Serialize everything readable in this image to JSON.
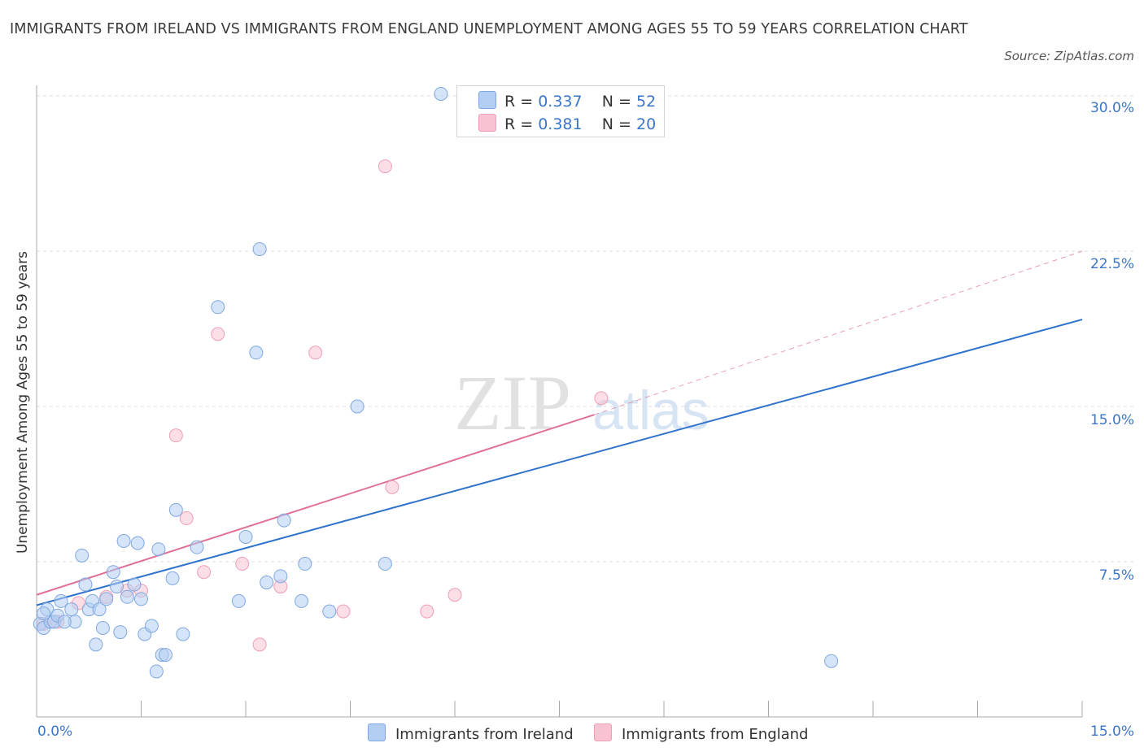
{
  "header": {
    "title": "IMMIGRANTS FROM IRELAND VS IMMIGRANTS FROM ENGLAND UNEMPLOYMENT AMONG AGES 55 TO 59 YEARS CORRELATION CHART",
    "source": "Source: ZipAtlas.com",
    "watermark_zip": "ZIP",
    "watermark_atlas": "atlas"
  },
  "colors": {
    "ireland_fill": "#b3cef3",
    "ireland_stroke": "#7fa8e0",
    "ireland_line": "#2f72cc",
    "england_fill": "#f8c2d2",
    "england_stroke": "#ee9fb8",
    "england_line": "#e07098",
    "tick_text": "#3a76c9",
    "grid": "#dddddd"
  },
  "legend": {
    "ireland": {
      "r_label": "R = ",
      "r_value": "0.337",
      "n_label": "N = ",
      "n_value": "52"
    },
    "england": {
      "r_label": "R = ",
      "r_value": "0.381",
      "n_label": "N = ",
      "n_value": "20"
    },
    "bottom_ireland": "Immigrants from Ireland",
    "bottom_england": "Immigrants from England"
  },
  "chart_data": {
    "type": "scatter",
    "title": "IMMIGRANTS FROM IRELAND VS IMMIGRANTS FROM ENGLAND UNEMPLOYMENT AMONG AGES 55 TO 59 YEARS CORRELATION CHART",
    "xlabel": "",
    "ylabel": "Unemployment Among Ages 55 to 59 years",
    "xlim": [
      0,
      15
    ],
    "ylim": [
      0,
      30
    ],
    "x_tick_labels": [
      "0.0%",
      "15.0%"
    ],
    "y_ticks": [
      7.5,
      15.0,
      22.5,
      30.0
    ],
    "y_tick_labels": [
      "7.5%",
      "15.0%",
      "22.5%",
      "30.0%"
    ],
    "grid": true,
    "legend_position": "top-center",
    "series": [
      {
        "name": "Immigrants from Ireland",
        "R": 0.337,
        "N": 52,
        "trend": {
          "x": [
            0,
            15
          ],
          "y": [
            5.4,
            19.2
          ],
          "extrapolated_from": 15
        },
        "points": [
          [
            0.05,
            4.5
          ],
          [
            0.1,
            4.3
          ],
          [
            0.15,
            5.2
          ],
          [
            0.2,
            4.6
          ],
          [
            0.25,
            4.6
          ],
          [
            0.3,
            4.9
          ],
          [
            0.35,
            5.6
          ],
          [
            0.5,
            5.2
          ],
          [
            0.55,
            4.6
          ],
          [
            0.65,
            7.8
          ],
          [
            0.7,
            6.4
          ],
          [
            0.75,
            5.2
          ],
          [
            0.8,
            5.6
          ],
          [
            0.85,
            3.5
          ],
          [
            0.9,
            5.2
          ],
          [
            0.95,
            4.3
          ],
          [
            1.0,
            5.7
          ],
          [
            1.1,
            7.0
          ],
          [
            1.15,
            6.3
          ],
          [
            1.2,
            4.1
          ],
          [
            1.25,
            8.5
          ],
          [
            1.3,
            5.8
          ],
          [
            1.4,
            6.4
          ],
          [
            1.45,
            8.4
          ],
          [
            1.5,
            5.7
          ],
          [
            1.55,
            4.0
          ],
          [
            1.65,
            4.4
          ],
          [
            1.72,
            2.2
          ],
          [
            1.75,
            8.1
          ],
          [
            1.8,
            3.0
          ],
          [
            1.85,
            3.0
          ],
          [
            1.95,
            6.7
          ],
          [
            2.0,
            10.0
          ],
          [
            2.1,
            4.0
          ],
          [
            2.3,
            8.2
          ],
          [
            2.6,
            19.8
          ],
          [
            2.9,
            5.6
          ],
          [
            3.0,
            8.7
          ],
          [
            3.15,
            17.6
          ],
          [
            3.2,
            22.6
          ],
          [
            3.3,
            6.5
          ],
          [
            3.5,
            6.8
          ],
          [
            3.55,
            9.5
          ],
          [
            3.8,
            5.6
          ],
          [
            3.85,
            7.4
          ],
          [
            4.2,
            5.1
          ],
          [
            4.6,
            15.0
          ],
          [
            5.0,
            7.4
          ],
          [
            5.8,
            30.1
          ],
          [
            11.4,
            2.7
          ],
          [
            0.1,
            5.0
          ],
          [
            0.4,
            4.6
          ]
        ]
      },
      {
        "name": "Immigrants from England",
        "R": 0.381,
        "N": 20,
        "trend": {
          "x": [
            0,
            8.0
          ],
          "y": [
            5.9,
            14.6
          ],
          "extrapolated_to": [
            15,
            22.5
          ]
        },
        "points": [
          [
            0.1,
            4.5
          ],
          [
            0.3,
            4.6
          ],
          [
            0.6,
            5.5
          ],
          [
            1.0,
            5.8
          ],
          [
            1.3,
            6.1
          ],
          [
            1.5,
            6.1
          ],
          [
            2.0,
            13.6
          ],
          [
            2.15,
            9.6
          ],
          [
            2.4,
            7.0
          ],
          [
            2.6,
            18.5
          ],
          [
            2.95,
            7.4
          ],
          [
            3.2,
            3.5
          ],
          [
            3.5,
            6.3
          ],
          [
            4.0,
            17.6
          ],
          [
            4.4,
            5.1
          ],
          [
            5.0,
            26.6
          ],
          [
            5.1,
            11.1
          ],
          [
            5.6,
            5.1
          ],
          [
            6.0,
            5.9
          ],
          [
            8.1,
            15.4
          ]
        ]
      }
    ]
  }
}
